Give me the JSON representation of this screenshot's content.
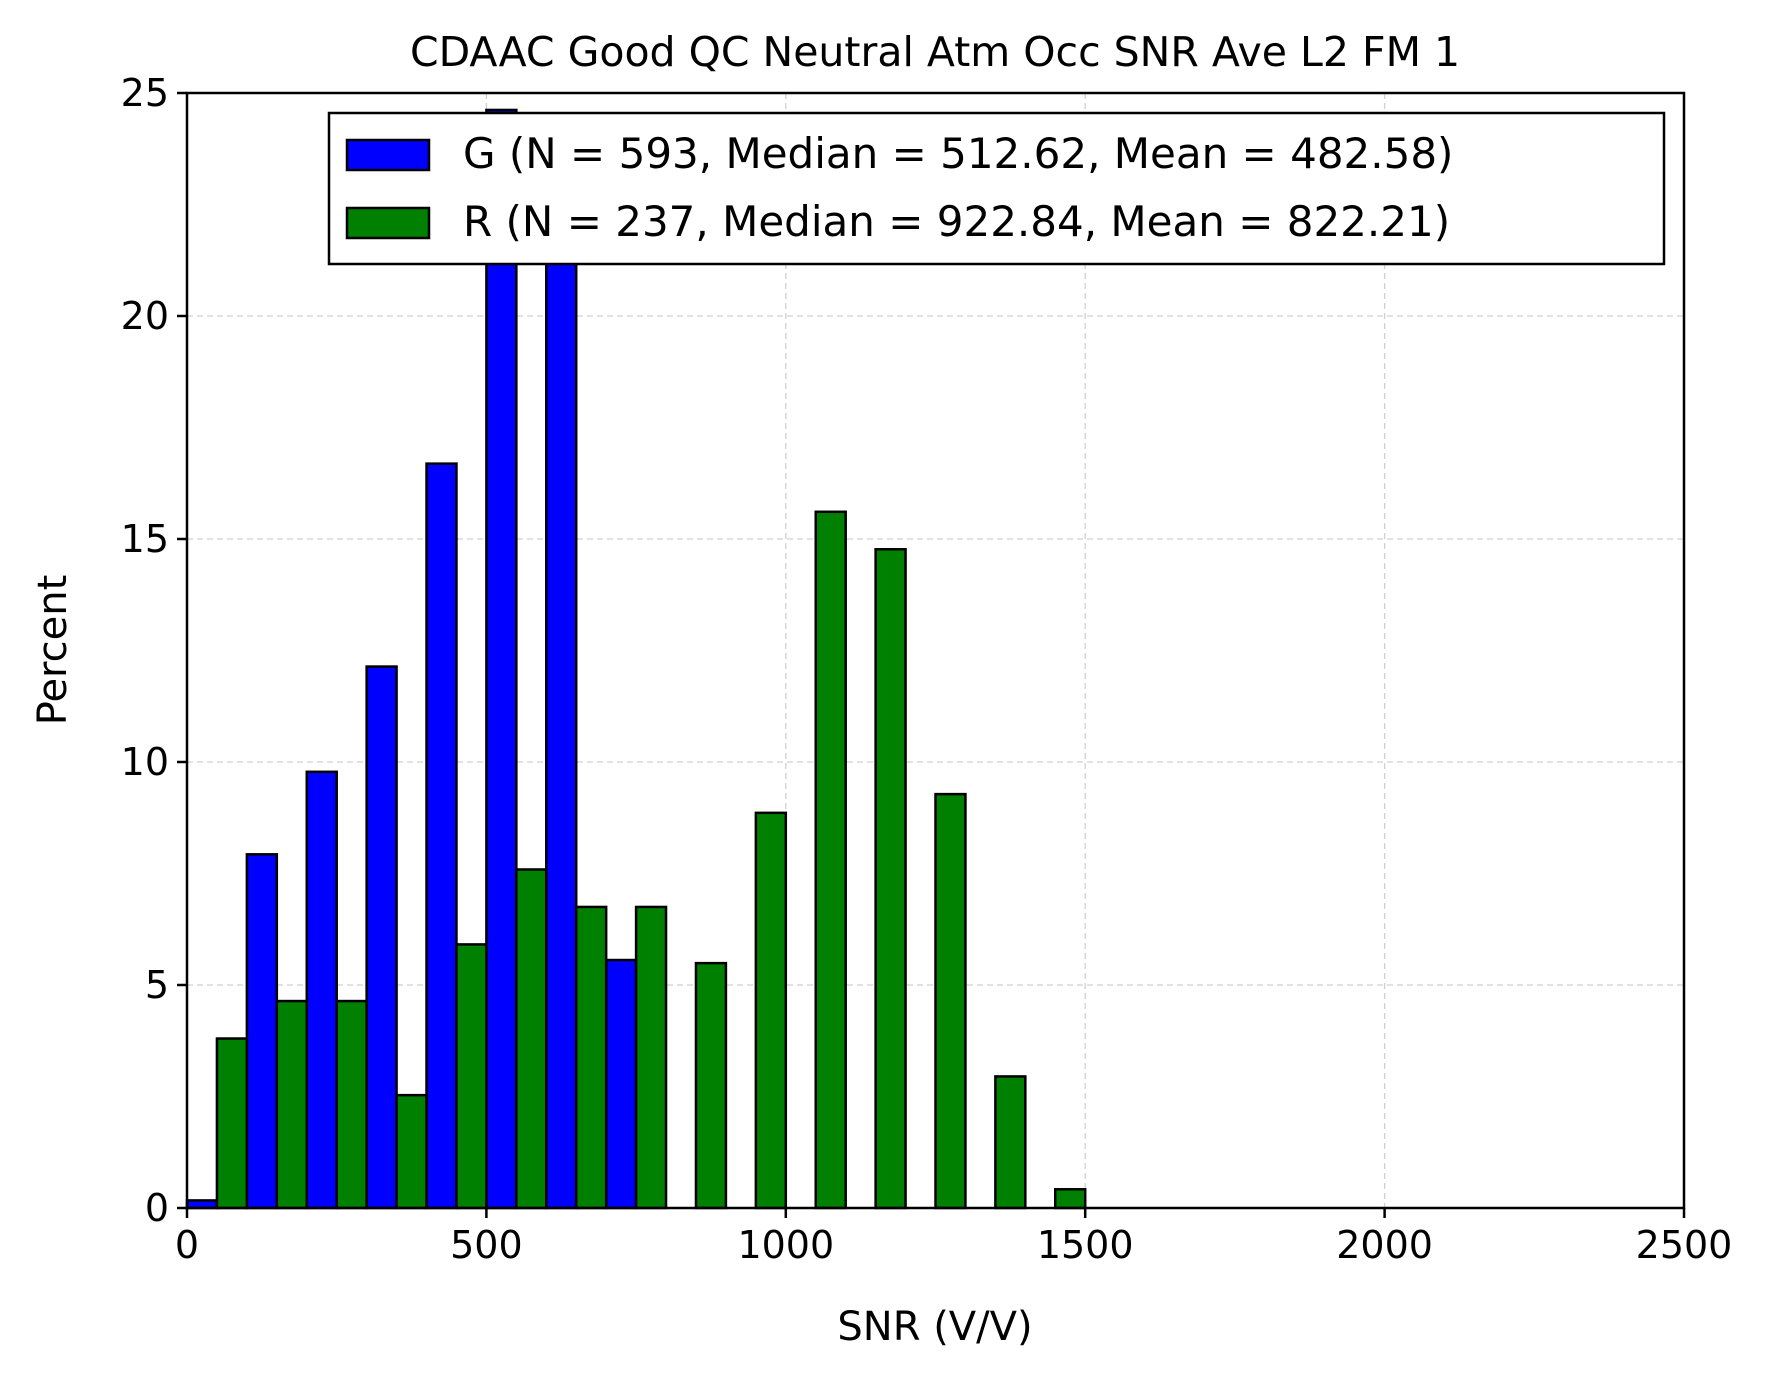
{
  "chart_data": {
    "type": "bar",
    "title": "CDAAC Good QC Neutral Atm Occ SNR Ave L2 FM 1",
    "xlabel": "SNR (V/V)",
    "ylabel": "Percent",
    "xlim": [
      0,
      2500
    ],
    "ylim": [
      0,
      25
    ],
    "xticks": [
      "0",
      "500",
      "1000",
      "1500",
      "2000",
      "2500"
    ],
    "yticks": [
      "0",
      "5",
      "10",
      "15",
      "20",
      "25"
    ],
    "grid": true,
    "legend_position": "top-right",
    "bin_width": 100,
    "bin_starts": [
      0,
      100,
      200,
      300,
      400,
      500,
      600,
      700,
      800,
      900,
      1000,
      1100,
      1200,
      1300,
      1400,
      1500,
      1600,
      1700,
      1800,
      1900,
      2000,
      2100,
      2200,
      2300,
      2400
    ],
    "series": [
      {
        "name": "G (N = 593, Median = 512.62, Mean = 482.58)",
        "color": "#0000ff",
        "values": [
          0.17,
          7.93,
          9.78,
          12.14,
          16.69,
          24.62,
          23.1,
          5.56,
          0,
          0,
          0,
          0,
          0,
          0,
          0,
          0,
          0,
          0,
          0,
          0,
          0,
          0,
          0,
          0,
          0
        ]
      },
      {
        "name": "R (N = 237, Median = 922.84, Mean = 822.21)",
        "color": "#008000",
        "values": [
          3.8,
          4.64,
          4.64,
          2.53,
          5.91,
          7.59,
          6.75,
          6.75,
          5.49,
          8.86,
          15.61,
          14.77,
          9.28,
          2.95,
          0.42,
          0,
          0,
          0,
          0,
          0,
          0,
          0,
          0,
          0,
          0
        ]
      }
    ]
  }
}
